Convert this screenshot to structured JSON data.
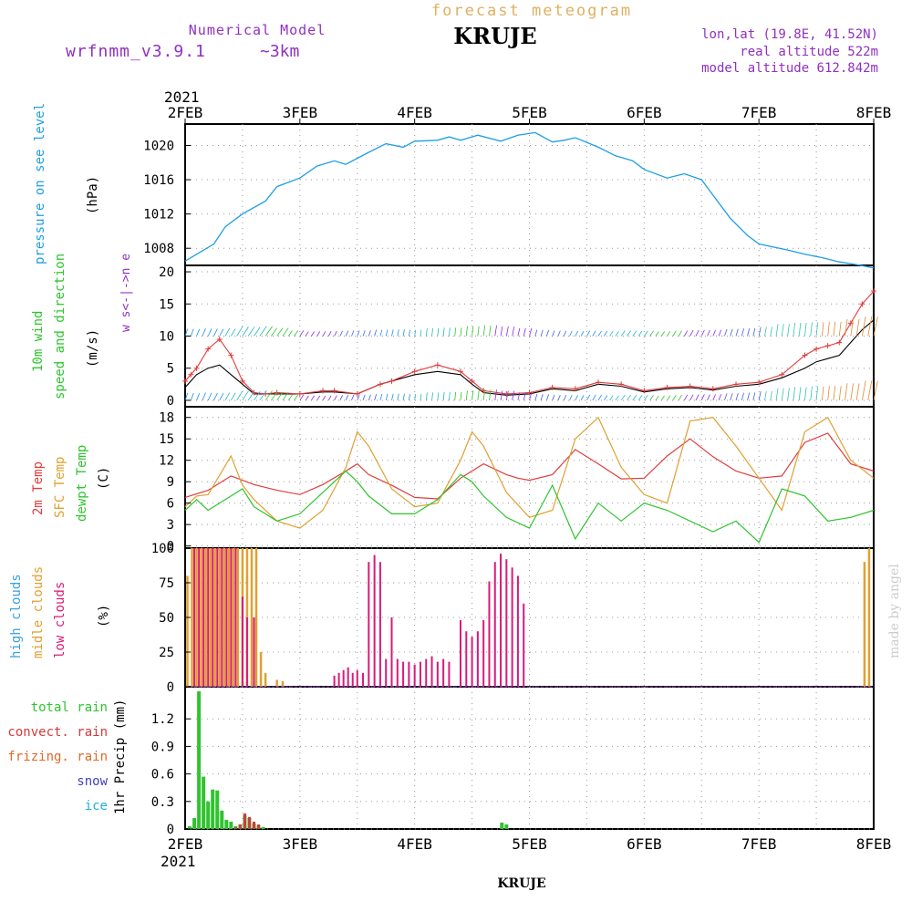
{
  "header": {
    "forecast_title": "forecast meteogram",
    "location": "KRUJE",
    "model_label": "Numerical Model",
    "model_name": "wrfnmm_v3.9.1",
    "resolution": "~3km",
    "lonlat": "lon,lat (19.8E, 41.52N)",
    "real_altitude": "real altitude 522m",
    "model_altitude": "model altitude  612.842m"
  },
  "colors": {
    "pressure": "#1e9ee6",
    "wind_speed": "#e23b3b",
    "temp2m": "#e03c3c",
    "sfc_temp": "#e0a030",
    "dewpoint": "#2ec42e",
    "high_clouds": "#3aa0e0",
    "middle_clouds": "#e0a030",
    "low_clouds": "#d81b7a",
    "total_rain": "#2ec42e",
    "convect_rain": "#d23a3a",
    "frizing_rain": "#e06a2a",
    "snow": "#4040c0",
    "ice": "#20b0d0",
    "signature": "#cccccc"
  },
  "chart_data": {
    "type": "line",
    "x_ticks_top": [
      "2FEB",
      "3FEB",
      "4FEB",
      "5FEB",
      "6FEB",
      "7FEB",
      "8FEB"
    ],
    "x_ticks_bottom": [
      "2FEB",
      "3FEB",
      "4FEB",
      "5FEB",
      "6FEB",
      "7FEB",
      "8FEB"
    ],
    "year_top": "2021",
    "year_bottom": "2021",
    "xlabel": "KRUJE",
    "signature": "made by angel",
    "panels": {
      "pressure": {
        "ylabel": "pressure on see level",
        "unit": "(hPa)",
        "yticks": [
          "1020",
          "1016",
          "1012",
          "1008"
        ],
        "ylim": [
          1006,
          1022.5
        ],
        "series": [
          {
            "x": [
              0,
              0.1,
              0.25,
              0.35,
              0.5,
              0.7,
              0.8,
              1.0,
              1.15,
              1.3,
              1.4,
              1.6,
              1.75,
              1.9,
              2.0,
              2.2,
              2.3,
              2.4,
              2.55,
              2.75,
              2.9,
              3.05,
              3.2,
              3.3,
              3.4,
              3.6,
              3.75,
              3.9,
              4.0,
              4.2,
              4.35,
              4.5,
              4.6,
              4.75,
              4.9,
              5.0,
              5.25,
              5.4,
              5.55,
              5.7,
              5.85,
              6.0
            ],
            "y": [
              1006.5,
              1007.3,
              1008.5,
              1010.5,
              1012,
              1013.5,
              1015.2,
              1016.2,
              1017.6,
              1018.2,
              1017.8,
              1019.2,
              1020.2,
              1019.8,
              1020.5,
              1020.6,
              1021.0,
              1020.6,
              1021.2,
              1020.5,
              1021.2,
              1021.5,
              1020.4,
              1020.6,
              1020.9,
              1019.8,
              1018.8,
              1018.2,
              1017.2,
              1016.2,
              1016.7,
              1016.0,
              1014.2,
              1011.5,
              1009.5,
              1008.5,
              1007.8,
              1007.3,
              1006.9,
              1006.4,
              1006.1,
              1005.7
            ],
            "color": "#1e9ee6"
          }
        ]
      },
      "wind": {
        "ylabel1": "10m wind",
        "ylabel2": "speed and direction",
        "unit": "(m/s)",
        "compass": "w  s<-|->n  e",
        "yticks": [
          "20",
          "15",
          "10",
          "5",
          "0"
        ],
        "ylim": [
          -1,
          21
        ],
        "speed_x": [
          0,
          0.05,
          0.1,
          0.2,
          0.3,
          0.4,
          0.5,
          0.6,
          0.7,
          0.8,
          1.0,
          1.2,
          1.3,
          1.5,
          1.7,
          1.8,
          2.0,
          2.2,
          2.4,
          2.5,
          2.6,
          2.8,
          3.0,
          3.2,
          3.4,
          3.6,
          3.8,
          4.0,
          4.2,
          4.4,
          4.6,
          4.8,
          5.0,
          5.2,
          5.4,
          5.5,
          5.6,
          5.7,
          5.8,
          5.9,
          6.0
        ],
        "speed_y": [
          3,
          4,
          5,
          8,
          9.5,
          7,
          3,
          1.2,
          1,
          1.2,
          1,
          1.5,
          1.5,
          1,
          2.5,
          3,
          4.5,
          5.5,
          4.5,
          3,
          1.5,
          1,
          1.2,
          2,
          1.8,
          2.8,
          2.5,
          1.5,
          2,
          2.2,
          1.8,
          2.5,
          2.8,
          4,
          7,
          8,
          8.5,
          9,
          12,
          15,
          17
        ],
        "speed_mean_y": [
          2,
          3,
          4,
          5,
          5.5,
          4,
          2.5,
          1,
          1,
          1,
          1,
          1.3,
          1.3,
          1,
          2.5,
          3,
          4,
          4.5,
          4,
          2.5,
          1.2,
          0.8,
          1,
          1.8,
          1.5,
          2.5,
          2.2,
          1.3,
          1.8,
          2,
          1.6,
          2.2,
          2.5,
          3.5,
          5,
          6,
          6.5,
          7,
          9,
          11,
          12.5
        ]
      },
      "temperature": {
        "label_2m": "2m Temp",
        "label_sfc": "SFC Temp",
        "label_dew": "dewpt Temp",
        "unit": "(C)",
        "yticks": [
          "18",
          "15",
          "12",
          "9",
          "6",
          "3",
          "0"
        ],
        "ylim": [
          -0.3,
          19.5
        ],
        "series": [
          {
            "name": "2m Temp",
            "color": "#e03c3c",
            "x": [
              0,
              0.2,
              0.4,
              0.6,
              0.8,
              1.0,
              1.2,
              1.4,
              1.5,
              1.6,
              1.8,
              2.0,
              2.2,
              2.4,
              2.6,
              2.8,
              2.9,
              3.0,
              3.2,
              3.4,
              3.6,
              3.8,
              4.0,
              4.2,
              4.4,
              4.6,
              4.8,
              5.0,
              5.2,
              5.4,
              5.6,
              5.8,
              6.0
            ],
            "y": [
              6.8,
              7.8,
              9.8,
              8.6,
              7.8,
              7.2,
              8.6,
              10.5,
              11.5,
              10,
              8.5,
              6.8,
              6.6,
              9.5,
              11.5,
              10,
              9.5,
              9.2,
              10,
              13.5,
              11.5,
              9.4,
              9.5,
              12.6,
              15,
              12.5,
              10.5,
              9.5,
              9.8,
              14.5,
              15.8,
              11.5,
              10.5
            ]
          },
          {
            "name": "SFC Temp",
            "color": "#e0a030",
            "x": [
              0,
              0.1,
              0.2,
              0.4,
              0.5,
              0.6,
              0.8,
              1.0,
              1.2,
              1.4,
              1.5,
              1.6,
              1.8,
              2.0,
              2.2,
              2.4,
              2.5,
              2.6,
              2.8,
              3.0,
              3.2,
              3.4,
              3.6,
              3.8,
              4.0,
              4.2,
              4.4,
              4.6,
              4.8,
              5.0,
              5.2,
              5.4,
              5.6,
              5.8,
              6.0
            ],
            "y": [
              5.5,
              7,
              7.2,
              12.6,
              8.5,
              6.5,
              3.5,
              2.5,
              5,
              11,
              16,
              14,
              8,
              5.5,
              6,
              12,
              16,
              14,
              7.5,
              4,
              5,
              15,
              18,
              11,
              7.2,
              6,
              17.5,
              18,
              14,
              9.5,
              5,
              16,
              18,
              12,
              9.5
            ]
          },
          {
            "name": "dewpt Temp",
            "color": "#2ec42e",
            "x": [
              0,
              0.1,
              0.2,
              0.4,
              0.5,
              0.6,
              0.8,
              1.0,
              1.2,
              1.4,
              1.5,
              1.6,
              1.8,
              2.0,
              2.2,
              2.4,
              2.5,
              2.6,
              2.8,
              3.0,
              3.2,
              3.4,
              3.6,
              3.8,
              4.0,
              4.2,
              4.4,
              4.6,
              4.8,
              5.0,
              5.2,
              5.4,
              5.6,
              5.8,
              6.0
            ],
            "y": [
              5,
              6.5,
              5,
              7,
              8,
              5.5,
              3.5,
              4.5,
              7.5,
              10.5,
              9,
              7,
              4.5,
              4.5,
              6.5,
              10,
              9,
              7,
              4,
              2.5,
              8.5,
              1,
              6,
              3.5,
              6,
              5,
              3.5,
              2,
              3.5,
              0.5,
              8,
              7,
              3.5,
              4,
              5
            ]
          }
        ]
      },
      "clouds": {
        "label_high": "high  clouds",
        "label_middle": "midle clouds",
        "label_low": "low   clouds",
        "unit": "(%)",
        "yticks": [
          "100",
          "75",
          "50",
          "25",
          "0"
        ],
        "ylim": [
          0,
          100
        ],
        "middle": {
          "x": [
            0.02,
            0.06,
            0.1,
            0.14,
            0.18,
            0.22,
            0.26,
            0.3,
            0.34,
            0.38,
            0.42,
            0.46,
            0.5,
            0.54,
            0.58,
            0.62,
            0.66,
            0.7,
            0.8,
            0.85,
            5.92,
            5.96
          ],
          "y": [
            80,
            100,
            100,
            100,
            100,
            100,
            100,
            100,
            100,
            100,
            100,
            100,
            100,
            100,
            100,
            100,
            25,
            10,
            5,
            4,
            90,
            100
          ]
        },
        "low": {
          "x": [
            0.08,
            0.12,
            0.16,
            0.2,
            0.24,
            0.28,
            0.32,
            0.36,
            0.4,
            0.44,
            0.5,
            0.54,
            0.6,
            1.3,
            1.34,
            1.38,
            1.42,
            1.46,
            1.5,
            1.55,
            1.6,
            1.65,
            1.7,
            1.75,
            1.8,
            1.85,
            1.9,
            1.95,
            2.0,
            2.05,
            2.1,
            2.15,
            2.2,
            2.25,
            2.3,
            2.4,
            2.45,
            2.5,
            2.55,
            2.6,
            2.65,
            2.7,
            2.75,
            2.8,
            2.85,
            2.9,
            2.95
          ],
          "y": [
            100,
            100,
            100,
            100,
            100,
            100,
            100,
            100,
            100,
            100,
            65,
            50,
            50,
            8,
            10,
            12,
            14,
            10,
            12,
            10,
            90,
            95,
            90,
            20,
            50,
            20,
            18,
            18,
            16,
            18,
            20,
            22,
            18,
            20,
            18,
            48,
            40,
            36,
            40,
            48,
            76,
            90,
            96,
            92,
            86,
            80,
            60
          ]
        }
      },
      "precip": {
        "label_total": "total      rain",
        "label_convect": "convect. rain",
        "label_frizing": "frizing. rain",
        "label_snow": "snow",
        "label_ice": "ice",
        "ylabel": "1hr Precip (mm)",
        "yticks": [
          "1.2",
          "0.9",
          "0.6",
          "0.3",
          "0"
        ],
        "ylim": [
          0,
          1.55
        ],
        "total": {
          "x": [
            0.04,
            0.08,
            0.12,
            0.16,
            0.2,
            0.24,
            0.28,
            0.32,
            0.36,
            0.4,
            0.44,
            0.48,
            0.52,
            0.56,
            0.6,
            0.64,
            0.68,
            2.76,
            2.8
          ],
          "y": [
            0.03,
            0.12,
            1.5,
            0.57,
            0.3,
            0.43,
            0.42,
            0.2,
            0.1,
            0.08,
            0.03,
            0.05,
            0.15,
            0.12,
            0.06,
            0.04,
            0.02,
            0.07,
            0.05
          ]
        },
        "convect": {
          "x": [
            0.44,
            0.48,
            0.52,
            0.56,
            0.6,
            0.64
          ],
          "y": [
            0.02,
            0.05,
            0.17,
            0.13,
            0.08,
            0.05
          ]
        }
      }
    }
  }
}
